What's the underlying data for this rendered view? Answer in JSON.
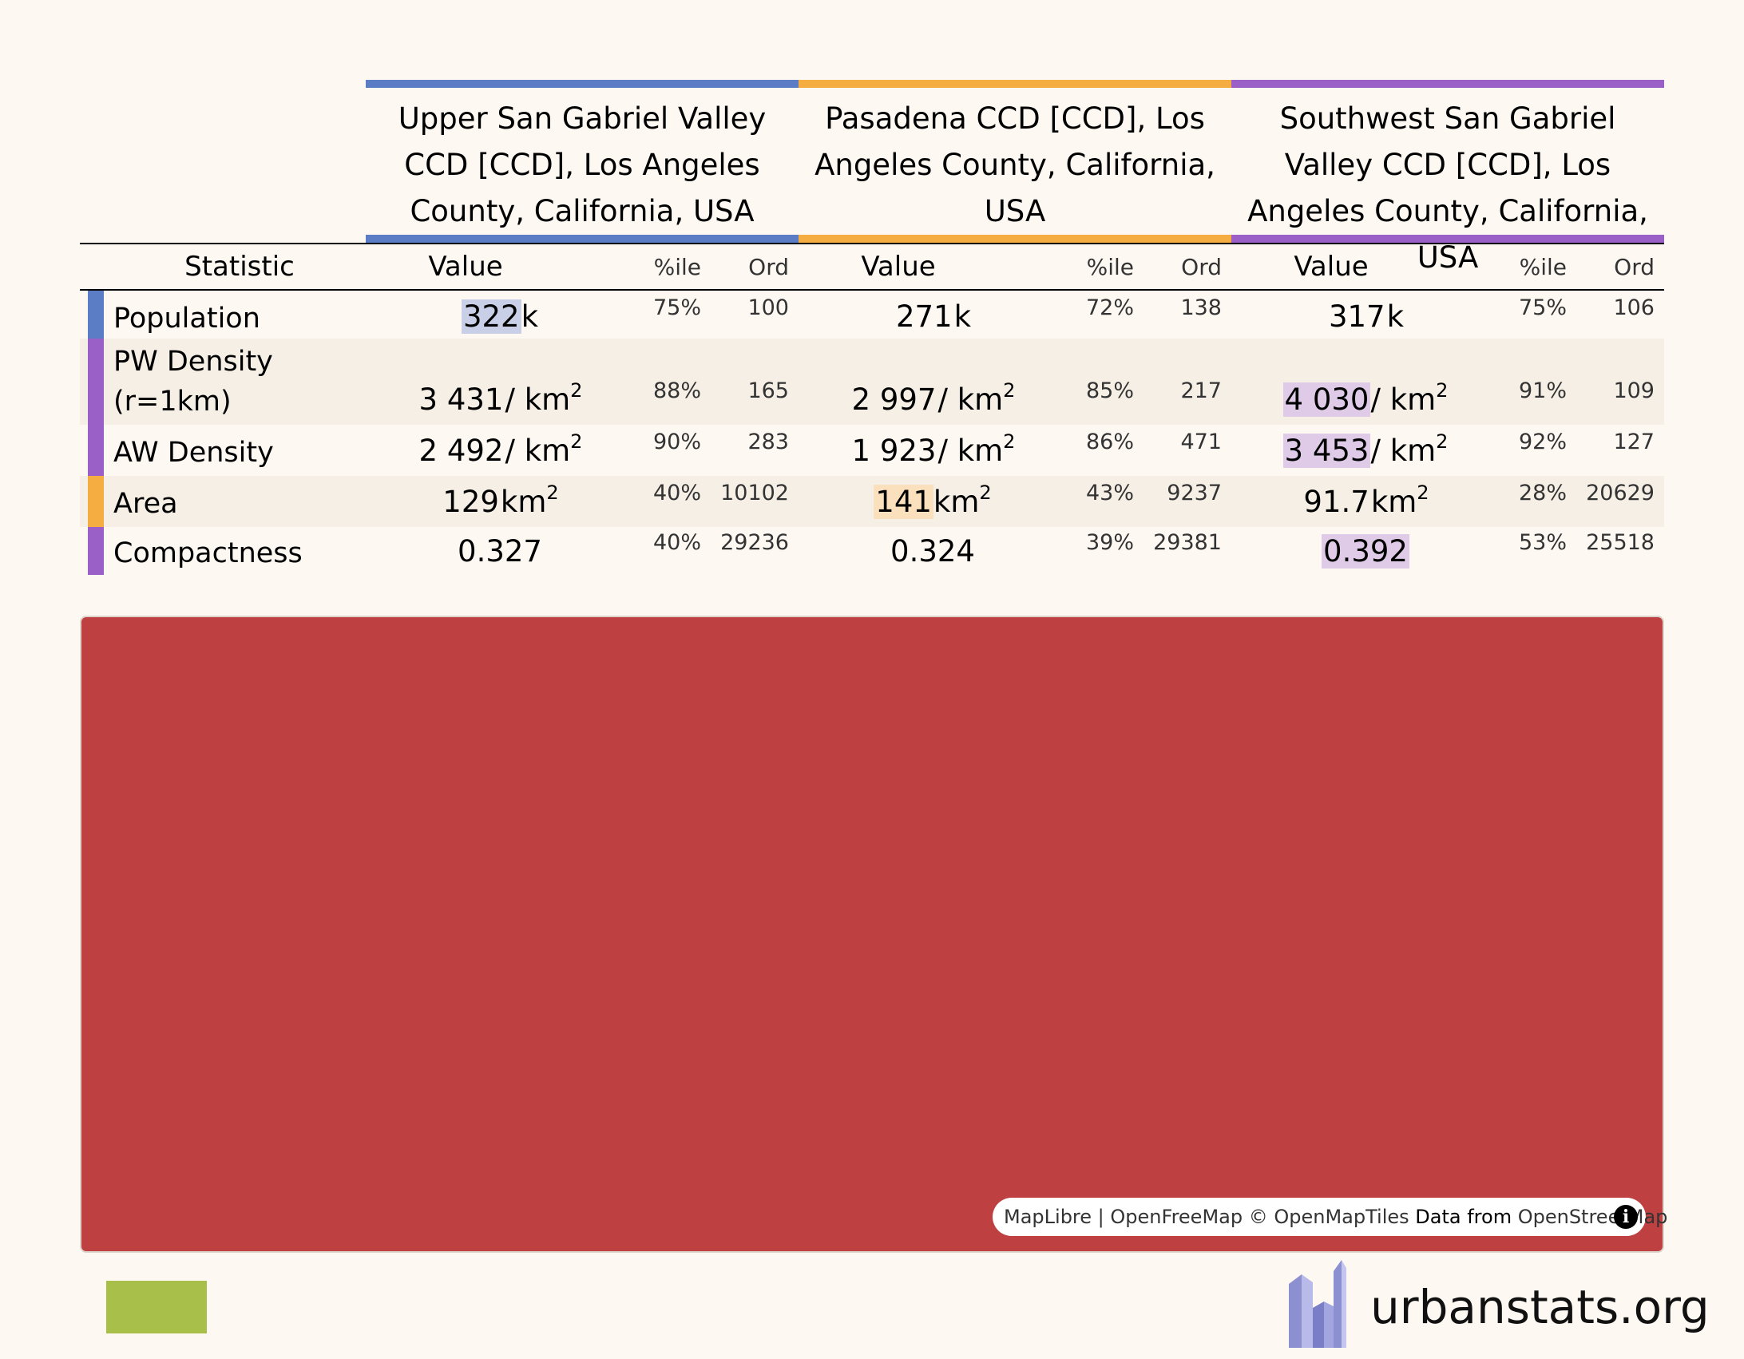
{
  "regions": [
    {
      "name": "Upper San Gabriel Valley CCD [CCD], Los Angeles County, California, USA",
      "color": "#5a7dc5"
    },
    {
      "name": "Pasadena CCD [CCD], Los Angeles County, California, USA",
      "color": "#f5ad42"
    },
    {
      "name": "Southwest San Gabriel Valley CCD [CCD], Los Angeles County, California, USA",
      "color": "#9b5fc8"
    }
  ],
  "table": {
    "statistic_header": "Statistic",
    "value_header": "Value",
    "pctile_header": "%ile",
    "ord_header": "Ord",
    "rows": [
      {
        "label": "Population",
        "stripe": "#5a7dc5",
        "cells": [
          {
            "num": "322",
            "unit": "k",
            "sup": "",
            "pct": "75%",
            "ord": "100",
            "highlight": "#c8cfe6"
          },
          {
            "num": "271",
            "unit": "k",
            "sup": "",
            "pct": "72%",
            "ord": "138",
            "highlight": ""
          },
          {
            "num": "317",
            "unit": "k",
            "sup": "",
            "pct": "75%",
            "ord": "106",
            "highlight": ""
          }
        ]
      },
      {
        "label_line1": "PW Density",
        "label_line2": "(r=1km)",
        "stripe": "#9b5fc8",
        "cells": [
          {
            "num": "3 431",
            "unit": "/ km",
            "sup": "2",
            "pct": "88%",
            "ord": "165",
            "highlight": ""
          },
          {
            "num": "2 997",
            "unit": "/ km",
            "sup": "2",
            "pct": "85%",
            "ord": "217",
            "highlight": ""
          },
          {
            "num": "4 030",
            "unit": "/ km",
            "sup": "2",
            "pct": "91%",
            "ord": "109",
            "highlight": "#dfcbe8"
          }
        ]
      },
      {
        "label": "AW Density",
        "stripe": "#9b5fc8",
        "cells": [
          {
            "num": "2 492",
            "unit": "/ km",
            "sup": "2",
            "pct": "90%",
            "ord": "283",
            "highlight": ""
          },
          {
            "num": "1 923",
            "unit": "/ km",
            "sup": "2",
            "pct": "86%",
            "ord": "471",
            "highlight": ""
          },
          {
            "num": "3 453",
            "unit": "/ km",
            "sup": "2",
            "pct": "92%",
            "ord": "127",
            "highlight": "#dfcbe8"
          }
        ]
      },
      {
        "label": "Area",
        "stripe": "#f5ad42",
        "cells": [
          {
            "num": "129",
            "unit": "km",
            "sup": "2",
            "pct": "40%",
            "ord": "10102",
            "highlight": ""
          },
          {
            "num": "141",
            "unit": "km",
            "sup": "2",
            "pct": "43%",
            "ord": "9237",
            "highlight": "#fbe0bd"
          },
          {
            "num": "91.7",
            "unit": "km",
            "sup": "2",
            "pct": "28%",
            "ord": "20629",
            "highlight": ""
          }
        ]
      },
      {
        "label": "Compactness",
        "stripe": "#9b5fc8",
        "cells": [
          {
            "num": "0.327",
            "unit": "",
            "sup": "",
            "pct": "40%",
            "ord": "29236",
            "highlight": ""
          },
          {
            "num": "0.324",
            "unit": "",
            "sup": "",
            "pct": "39%",
            "ord": "29381",
            "highlight": ""
          },
          {
            "num": "0.392",
            "unit": "",
            "sup": "",
            "pct": "53%",
            "ord": "25518",
            "highlight": "#dfcbe8"
          }
        ]
      }
    ]
  },
  "map": {
    "attribution": {
      "maplibre": "MapLibre",
      "sep": "|",
      "openfreemap": "OpenFreeMap",
      "copyright": "© OpenMapTiles",
      "data_from": "Data from",
      "osm": "OpenStreetMap"
    },
    "info_icon": "i",
    "color": "#bf4040"
  },
  "footer": {
    "logo_text": "urbanstats.org",
    "swatch_color": "#a8c04a"
  }
}
